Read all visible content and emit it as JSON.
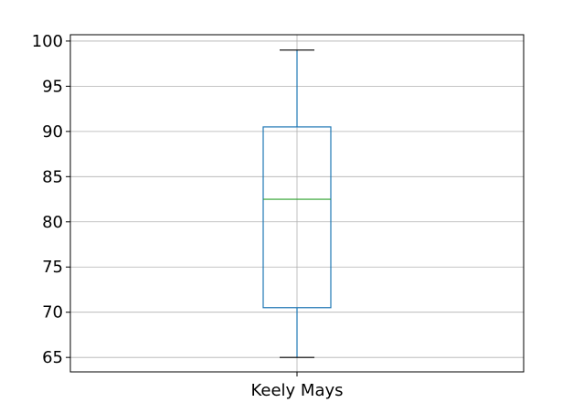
{
  "chart_data": {
    "type": "box",
    "categories": [
      "Keely Mays"
    ],
    "series": [
      {
        "whisker_low": 65,
        "q1": 70.5,
        "median": 82.5,
        "q3": 90.5,
        "whisker_high": 99
      }
    ],
    "ylim": [
      63.4,
      100.7
    ],
    "yticks": [
      65,
      70,
      75,
      80,
      85,
      90,
      95,
      100
    ],
    "grid": true,
    "colors": {
      "box": "#1f77b4",
      "median": "#2ca02c",
      "whisker": "#1f77b4",
      "cap": "#000000",
      "grid": "#b0b0b0",
      "frame": "#000000"
    }
  }
}
